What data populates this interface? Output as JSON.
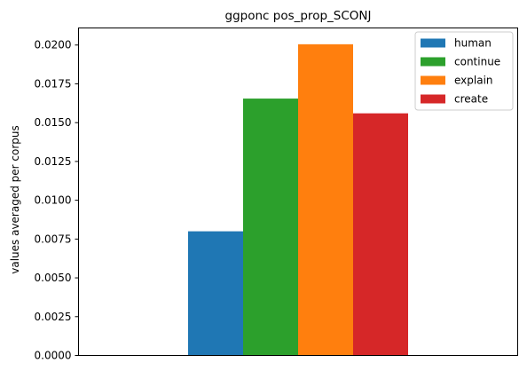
{
  "chart_data": {
    "type": "bar",
    "title": "ggponc pos_prop_SCONJ",
    "xlabel": "",
    "ylabel": "values averaged per corpus",
    "categories": [
      ""
    ],
    "series": [
      {
        "name": "human",
        "values": [
          0.008
        ],
        "color": "#1f77b4"
      },
      {
        "name": "continue",
        "values": [
          0.01655
        ],
        "color": "#2ca02c"
      },
      {
        "name": "explain",
        "values": [
          0.02005
        ],
        "color": "#ff7f0e"
      },
      {
        "name": "create",
        "values": [
          0.0156
        ],
        "color": "#d62728"
      }
    ],
    "ylim": [
      0,
      0.0211
    ],
    "yticks": [
      "0.0000",
      "0.0025",
      "0.0050",
      "0.0075",
      "0.0100",
      "0.0125",
      "0.0150",
      "0.0175",
      "0.0200"
    ],
    "grid": false,
    "legend_position": "top-right"
  }
}
